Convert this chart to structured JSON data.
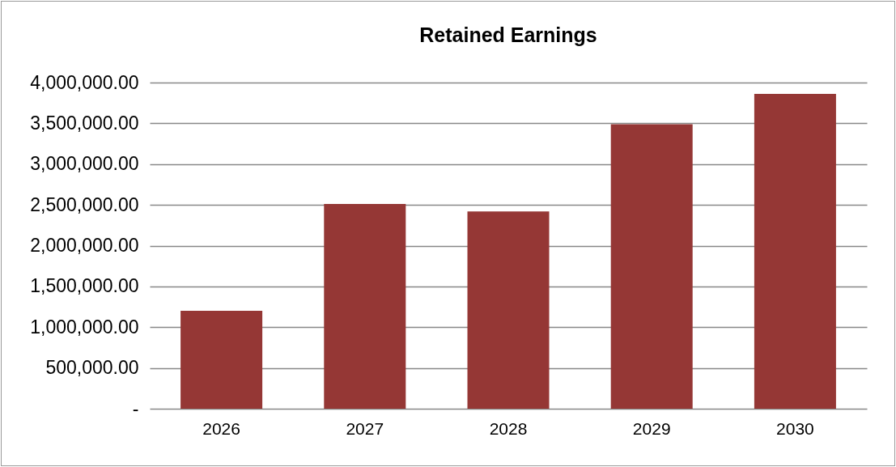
{
  "chart_data": {
    "type": "bar",
    "title": "Retained Earnings",
    "categories": [
      "2026",
      "2027",
      "2028",
      "2029",
      "2030"
    ],
    "values": [
      1200000,
      2510000,
      2420000,
      3490000,
      3860000
    ],
    "color": "#953735",
    "ylim": [
      0,
      4000000
    ],
    "yticks": [
      {
        "value": 0,
        "label": "-"
      },
      {
        "value": 500000,
        "label": "500,000.00"
      },
      {
        "value": 1000000,
        "label": "1,000,000.00"
      },
      {
        "value": 1500000,
        "label": "1,500,000.00"
      },
      {
        "value": 2000000,
        "label": "2,000,000.00"
      },
      {
        "value": 2500000,
        "label": "2,500,000.00"
      },
      {
        "value": 3000000,
        "label": "3,000,000.00"
      },
      {
        "value": 3500000,
        "label": "3,500,000.00"
      },
      {
        "value": 4000000,
        "label": "4,000,000.00"
      }
    ],
    "grid": "y"
  }
}
